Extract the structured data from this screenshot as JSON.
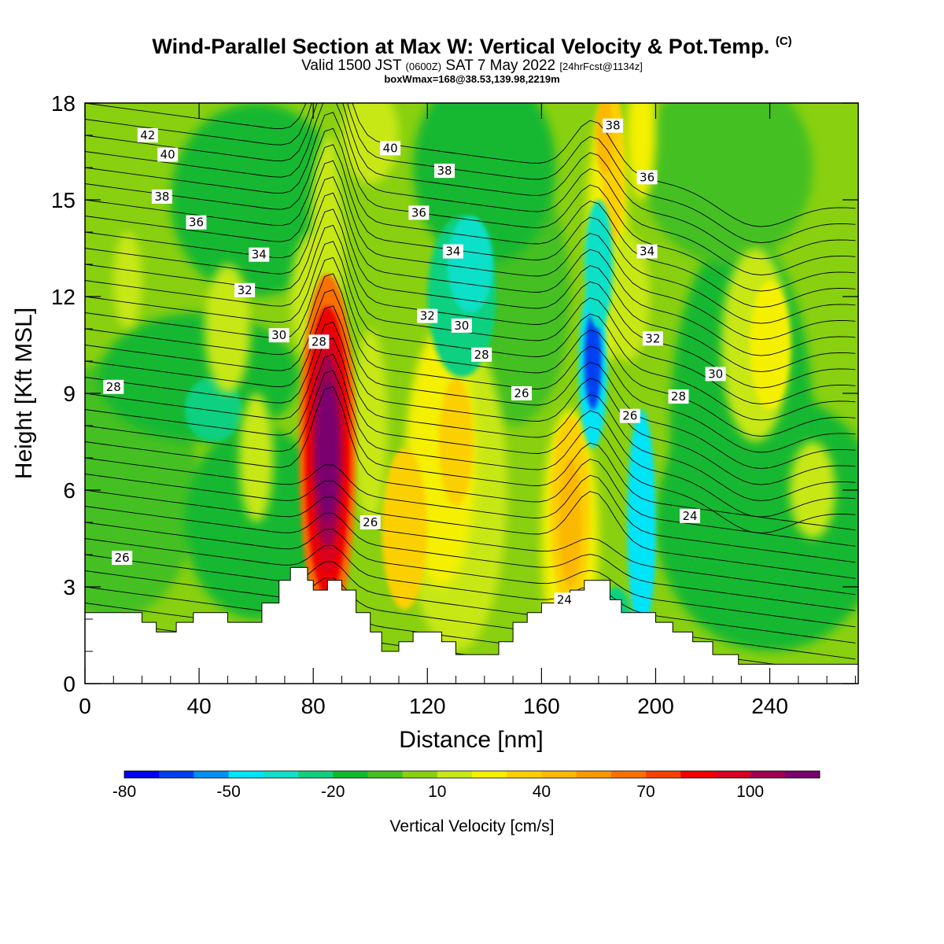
{
  "title": {
    "main": "Wind-Parallel Section at Max W: Vertical Velocity & Pot.Temp.",
    "copyright": "(C)",
    "valid_prefix": "Valid 1500 JST",
    "valid_utc": "(0600Z)",
    "valid_date": "SAT 7 May 2022",
    "forecast": "[24hrFcst@1134z]",
    "box": "boxWmax=168@38.53,139.98,2219m"
  },
  "chart_data": {
    "type": "heatmap",
    "xlabel": "Distance [nm]",
    "ylabel": "Height [Kft MSL]",
    "xlim": [
      0,
      271
    ],
    "ylim": [
      0,
      18
    ],
    "xticks": [
      "0",
      "40",
      "80",
      "120",
      "160",
      "200",
      "240"
    ],
    "yticks": [
      "0",
      "3",
      "6",
      "9",
      "12",
      "15",
      "18"
    ],
    "colorbar": {
      "label": "Vertical Velocity [cm/s]",
      "levels": [
        -80,
        -70,
        -60,
        -50,
        -40,
        -30,
        -20,
        -10,
        0,
        10,
        20,
        30,
        40,
        50,
        60,
        70,
        80,
        90,
        100,
        110,
        120
      ],
      "tick_labels": [
        "-80",
        "-50",
        "-20",
        "10",
        "40",
        "70",
        "100"
      ],
      "colors": [
        "#0000ee",
        "#0040f0",
        "#0090f0",
        "#00e4f8",
        "#10e0c8",
        "#10d080",
        "#12b830",
        "#44c020",
        "#88d010",
        "#c8e818",
        "#f4f000",
        "#fcd000",
        "#fcb800",
        "#fa9a00",
        "#f87000",
        "#f84000",
        "#f00000",
        "#d8001e",
        "#a00050",
        "#7a0070"
      ],
      "max_value": 168
    },
    "velocity_max": {
      "x": 85,
      "y": 7.2,
      "value": 168
    },
    "contour_labels": [
      {
        "text": "42",
        "x": 22,
        "y": 17.0
      },
      {
        "text": "40",
        "x": 29,
        "y": 16.4
      },
      {
        "text": "38",
        "x": 27,
        "y": 15.1
      },
      {
        "text": "36",
        "x": 39,
        "y": 14.3
      },
      {
        "text": "34",
        "x": 61,
        "y": 13.3
      },
      {
        "text": "32",
        "x": 56,
        "y": 12.2
      },
      {
        "text": "30",
        "x": 68,
        "y": 10.8
      },
      {
        "text": "28",
        "x": 82,
        "y": 10.6
      },
      {
        "text": "28",
        "x": 10,
        "y": 9.2
      },
      {
        "text": "40",
        "x": 107,
        "y": 16.6
      },
      {
        "text": "38",
        "x": 126,
        "y": 15.9
      },
      {
        "text": "36",
        "x": 117,
        "y": 14.6
      },
      {
        "text": "34",
        "x": 129,
        "y": 13.4
      },
      {
        "text": "32",
        "x": 120,
        "y": 11.4
      },
      {
        "text": "30",
        "x": 132,
        "y": 11.1
      },
      {
        "text": "28",
        "x": 139,
        "y": 10.2
      },
      {
        "text": "26",
        "x": 153,
        "y": 9.0
      },
      {
        "text": "38",
        "x": 185,
        "y": 17.3
      },
      {
        "text": "36",
        "x": 197,
        "y": 15.7
      },
      {
        "text": "34",
        "x": 197,
        "y": 13.4
      },
      {
        "text": "32",
        "x": 199,
        "y": 10.7
      },
      {
        "text": "30",
        "x": 221,
        "y": 9.6
      },
      {
        "text": "28",
        "x": 208,
        "y": 8.9
      },
      {
        "text": "26",
        "x": 191,
        "y": 8.3
      },
      {
        "text": "26",
        "x": 100,
        "y": 5.0
      },
      {
        "text": "26",
        "x": 13,
        "y": 3.9
      },
      {
        "text": "24",
        "x": 212,
        "y": 5.2
      },
      {
        "text": "24",
        "x": 168,
        "y": 2.6
      }
    ]
  }
}
